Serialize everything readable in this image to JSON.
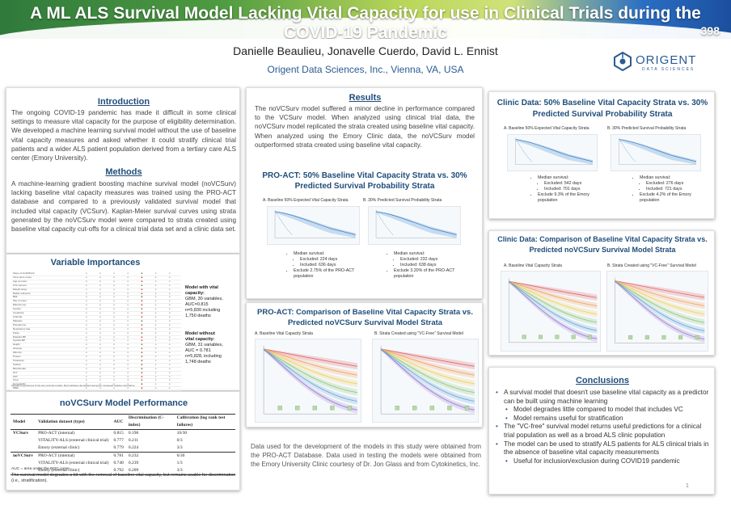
{
  "header": {
    "title": "A ML ALS Survival Model Lacking Vital Capacity for use in Clinical Trials during the COVID-19 Pandemic",
    "poster_number": "398",
    "authors": "Danielle Beaulieu, Jonavelle Cuerdo, David L. Ennist",
    "affiliation": "Origent Data Sciences, Inc., Vienna, VA, USA",
    "logo_name": "ORIGENT",
    "logo_sub": "DATA SCIENCES"
  },
  "intro": {
    "heading": "Introduction",
    "text": "The ongoing COVID-19 pandemic has made it difficult in some clinical settings to measure vital capacity for the purpose of eligibility determination. We developed a machine learning survival model without the use of baseline vital capacity measures and asked whether it could stratify clinical trial patients and a wider ALS patient population derived from a tertiary care ALS center (Emory University)."
  },
  "methods": {
    "heading": "Methods",
    "text": "A machine-learning gradient boosting machine survival model (noVCSurv) lacking baseline vital capacity measures was trained using the PRO-ACT database and compared to a previously validated survival model that included vital capacity (VCSurv). Kaplan-Meier survival curves using strata generated by the noVCSurv model were compared to strata created using baseline vital capacity cut-offs for a clinical trial data set and a clinic data set."
  },
  "var_imp": {
    "heading": "Variable Importances",
    "with_vc": [
      "Model with vital",
      "capacity:",
      "GBM, 30 variables,",
      "AUC=0.815",
      "n=5,830 including",
      "1,750 deaths"
    ],
    "without_vc": [
      "Model without",
      "vital capacity:",
      "GBM, 31 variables,",
      "AUC = 0.781",
      "n=5,828, including",
      "1,748 deaths"
    ],
    "rows": [
      "Slope of ALSFRS-R",
      "Time since onset",
      "Age at onset",
      "FVC percent",
      "Weight slope",
      "Bulbar subscore",
      "BMI",
      "Site of onset",
      "Riluzole use",
      "Gender",
      "Creatinine",
      "Chloride",
      "Platelets",
      "Phosphorus",
      "Respiratory rate",
      "Pulse",
      "Diastolic BP",
      "Systolic BP",
      "Height",
      "Glucose",
      "Albumin",
      "Protein",
      "Potassium",
      "Sodium",
      "Bicarbonate",
      "ALT",
      "AST",
      "Urea",
      "Hemoglobin",
      "WBC",
      "Calcium",
      "Neutrophils",
      "Lymphocytes",
      "Monocytes"
    ],
    "footnote": "Variable importances of the two survival models. Red indicates decreased and green increased relative importance."
  },
  "performance": {
    "heading": "noVCSurv Model Performance",
    "columns": [
      "Model",
      "Validation dataset (type)",
      "AUC",
      "Discrimination (C-index)",
      "Calibration (log rank test failures)"
    ],
    "rows": [
      [
        "VCSurv",
        "PRO-ACT (internal)",
        "0.815",
        "0.196",
        "10/30"
      ],
      [
        "",
        "VITALITY-ALS (external clinical trial)",
        "0.777",
        "0.211",
        "0/3"
      ],
      [
        "",
        "Emory (external clinic)",
        "0.779",
        "0.224",
        "3/3"
      ],
      [
        "noVCSurv",
        "PRO-ACT (internal)",
        "0.781",
        "0.232",
        "6/30"
      ],
      [
        "",
        "VITALITY-ALS (external clinical trial)",
        "0.748",
        "0.239",
        "1/3"
      ],
      [
        "",
        "Emory (external clinic)",
        "0.792",
        "0.209",
        "3/3"
      ]
    ],
    "footnote1": "AUC = area under the ROC curve",
    "footnote2": "The survival model degrades a bit with the removal of baseline vital capacity, but remains usable for discrimination (i.e., stratification)."
  },
  "results": {
    "heading": "Results",
    "text": "The noVCSurv model suffered a minor decline in performance compared to the VCSurv model. When analyzed using clinical trial data, the noVCSurv model replicated the strata created using baseline vital capacity. When analyzed using the Emory Clinic data, the noVCSurv model outperformed strata created using baseline vital capacity."
  },
  "proact50": {
    "heading": "PRO-ACT: 50% Baseline Vital Capacity Strata vs. 30% Predicted Survival Probability Strata",
    "cap_a": "A. Baseline 50% Expected Vital Capacity Strata",
    "cap_b": "B. 30% Predicted Survival Probability Strata",
    "bullets_a": [
      "Median survival:",
      "Excluded: 224 days",
      "Included: 636 days",
      "Exclude 2.75% of the PRO-ACT population"
    ],
    "bullets_b": [
      "Median survival:",
      "Excluded: 232 days",
      "Included: 638 days",
      "Exclude 3.20% of the PRO-ACT population"
    ]
  },
  "proact_cmp": {
    "heading": "PRO-ACT: Comparison of Baseline Vital Capacity Strata vs. Predicted noVCSurv Survival Model Strata",
    "cap_a": "A. Baseline Vital Capacity Strata",
    "cap_b": "B. Strata Created using \"VC-Free\" Survival Model"
  },
  "data_note": "Data used for the development of the models in this study were obtained from the PRO-ACT Database. Data used in testing the models were obtained from the Emory University Clinic courtesy of Dr. Jon Glass and from Cytokinetics, Inc.",
  "clinic50": {
    "heading": "Clinic Data: 50% Baseline Vital Capacity Strata vs. 30% Predicted Survival Probability Strata",
    "cap_a": "A. Baseline 50% Expected Vital Capacity Strata",
    "cap_b": "B. 30% Predicted Survival Probability Strata",
    "bullets_a": [
      "Median survival:",
      "Excluded: 542 days",
      "Included: 701 days",
      "Exclude 9.3% of the Emory population"
    ],
    "bullets_b": [
      "Median survival:",
      "Excluded: 276 days",
      "Included: 721 days",
      "Exclude 4.2% of the Emory population"
    ]
  },
  "clinic_cmp": {
    "heading": "Clinic Data: Comparison of Baseline Vital Capacity Strata vs. Predicted noVCSurv Survival Model Strata",
    "cap_a": "A. Baseline Vital Capacity Strata",
    "cap_b": "B. Strata Created using \"VC-Free\" Survival Model"
  },
  "conclusions": {
    "heading": "Conclusions",
    "items": [
      "A survival model that doesn't use baseline vital capacity as a predictor can be built using machine learning",
      "Model degrades little compared to model that includes VC",
      "Model remains useful for stratification",
      "The \"VC-free\" survival model returns useful predictions for a clinical trial population as well as a broad ALS clinic population",
      "The model can be used to stratify ALS patients for ALS clinical trials in the absence of baseline vital capacity measurements",
      "Useful for inclusion/exclusion during COVID19 pandemic"
    ]
  },
  "page_number": "1"
}
